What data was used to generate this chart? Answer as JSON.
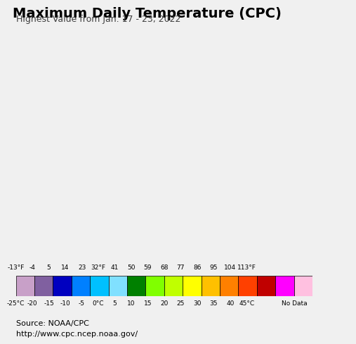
{
  "title": "Maximum Daily Temperature (CPC)",
  "subtitle": "Highest Value from Jan. 17 - 23, 2022",
  "source_line1": "Source: NOAA/CPC",
  "source_line2": "http://www.cpc.ncep.noaa.gov/",
  "colorbar_colors": [
    "#c8a0c8",
    "#8060a0",
    "#0000c0",
    "#0080ff",
    "#00c0ff",
    "#80e0ff",
    "#008000",
    "#80ff00",
    "#c0ff00",
    "#ffff00",
    "#ffc000",
    "#ff8000",
    "#ff4000",
    "#c00000",
    "#ff00ff",
    "#ffc0e0"
  ],
  "colorbar_labels_f": [
    "-13°F",
    "-4",
    "5",
    "14",
    "23",
    "32°F",
    "41",
    "50",
    "59",
    "68",
    "77",
    "86",
    "95",
    "104",
    "113°F"
  ],
  "colorbar_labels_c": [
    "-25°C",
    "-20",
    "-15",
    "-10",
    "-5",
    "0°C",
    "5",
    "10",
    "15",
    "20",
    "25",
    "30",
    "35",
    "40",
    "45°C"
  ],
  "no_data_color": "#e0d0e0",
  "no_data_label": "No Data",
  "ocean_color": "#c8f0ff",
  "land_bg_color": "#f0e8e8",
  "map_extent": [
    117,
    133,
    32,
    43.5
  ],
  "background_color": "#f0e8e8",
  "title_fontsize": 14,
  "subtitle_fontsize": 9,
  "source_fontsize": 8
}
